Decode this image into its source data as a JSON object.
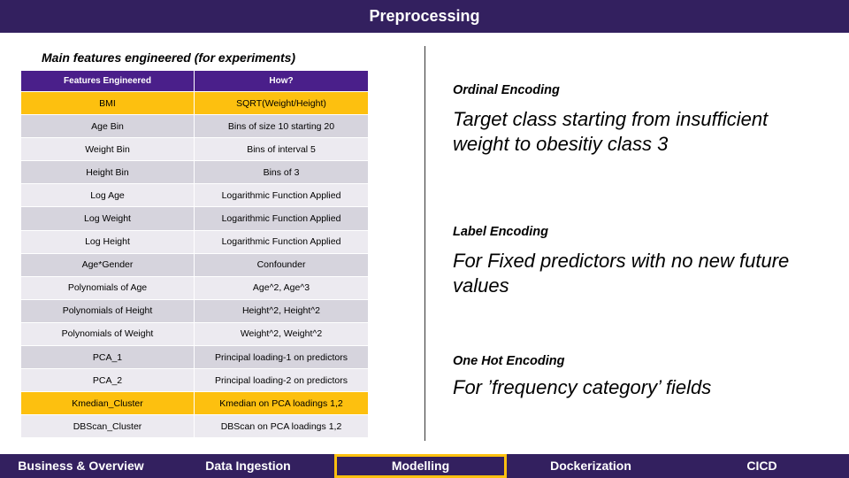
{
  "header": {
    "title": "Preprocessing"
  },
  "table": {
    "title": "Main features engineered (for experiments)",
    "columns": [
      "Features Engineered",
      "How?"
    ],
    "rows": [
      {
        "feature": "BMI",
        "how": "SQRT(Weight/Height)",
        "highlight": true
      },
      {
        "feature": "Age Bin",
        "how": "Bins of size 10 starting 20",
        "highlight": false
      },
      {
        "feature": "Weight Bin",
        "how": "Bins of interval 5",
        "highlight": false
      },
      {
        "feature": "Height Bin",
        "how": "Bins of 3",
        "highlight": false
      },
      {
        "feature": "Log Age",
        "how": "Logarithmic Function Applied",
        "highlight": false
      },
      {
        "feature": "Log Weight",
        "how": "Logarithmic Function Applied",
        "highlight": false
      },
      {
        "feature": "Log Height",
        "how": "Logarithmic Function Applied",
        "highlight": false
      },
      {
        "feature": "Age*Gender",
        "how": "Confounder",
        "highlight": false
      },
      {
        "feature": "Polynomials of Age",
        "how": "Age^2, Age^3",
        "highlight": false
      },
      {
        "feature": "Polynomials of Height",
        "how": "Height^2, Height^2",
        "highlight": false
      },
      {
        "feature": "Polynomials of Weight",
        "how": "Weight^2, Weight^2",
        "highlight": false
      },
      {
        "feature": "PCA_1",
        "how": "Principal loading-1 on predictors",
        "highlight": false
      },
      {
        "feature": "PCA_2",
        "how": "Principal loading-2 on predictors",
        "highlight": false
      },
      {
        "feature": "Kmedian_Cluster",
        "how": "Kmedian on PCA loadings 1,2",
        "highlight": true
      },
      {
        "feature": "DBScan_Cluster",
        "how": "DBScan on PCA loadings 1,2",
        "highlight": false
      }
    ]
  },
  "encodings": [
    {
      "title": "Ordinal Encoding",
      "description": "Target class starting from insufficient weight to obesitiy class 3"
    },
    {
      "title": "Label Encoding",
      "description": "For Fixed predictors with no new future values"
    },
    {
      "title": "One Hot Encoding",
      "description": "For ’frequency category’ fields"
    }
  ],
  "nav": {
    "items": [
      {
        "label": "Business & Overview",
        "active": false
      },
      {
        "label": "Data Ingestion",
        "active": false
      },
      {
        "label": "Modelling",
        "active": true
      },
      {
        "label": "Dockerization",
        "active": false
      },
      {
        "label": "CICD",
        "active": false
      }
    ]
  },
  "colors": {
    "header_bg": "#33205f",
    "table_header_bg": "#4a1f8a",
    "highlight": "#fdc00f",
    "row_odd": "#d6d4dd",
    "row_even": "#eceaf0"
  }
}
